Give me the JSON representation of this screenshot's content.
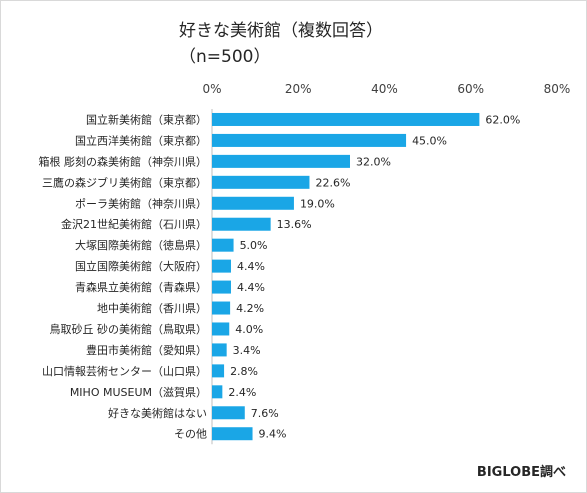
{
  "chart_data": {
    "type": "bar",
    "orientation": "horizontal",
    "title": "好きな美術館（複数回答）",
    "subtitle": "（n=500）",
    "categories": [
      "国立新美術館（東京都）",
      "国立西洋美術館（東京都）",
      "箱根 彫刻の森美術館（神奈川県）",
      "三鷹の森ジブリ美術館（東京都）",
      "ポーラ美術館（神奈川県）",
      "金沢21世紀美術館（石川県）",
      "大塚国際美術館（徳島県）",
      "国立国際美術館（大阪府）",
      "青森県立美術館（青森県）",
      "地中美術館（香川県）",
      "鳥取砂丘 砂の美術館（鳥取県）",
      "豊田市美術館（愛知県）",
      "山口情報芸術センター（山口県）",
      "MIHO MUSEUM（滋賀県）",
      "好きな美術館はない",
      "その他"
    ],
    "values": [
      62.0,
      45.0,
      32.0,
      22.6,
      19.0,
      13.6,
      5.0,
      4.4,
      4.4,
      4.2,
      4.0,
      3.4,
      2.8,
      2.4,
      7.6,
      9.4
    ],
    "value_labels": [
      "62.0%",
      "45.0%",
      "32.0%",
      "22.6%",
      "19.0%",
      "13.6%",
      "5.0%",
      "4.4%",
      "4.4%",
      "4.2%",
      "4.0%",
      "3.4%",
      "2.8%",
      "2.4%",
      "7.6%",
      "9.4%"
    ],
    "xlim": [
      0,
      80
    ],
    "xticks": [
      "0%",
      "20%",
      "40%",
      "60%",
      "80%"
    ],
    "xlabel": "",
    "ylabel": "",
    "grid": false,
    "legend": "none",
    "bar_color": "#1aa6e6"
  },
  "credit": "BIGLOBE調べ"
}
